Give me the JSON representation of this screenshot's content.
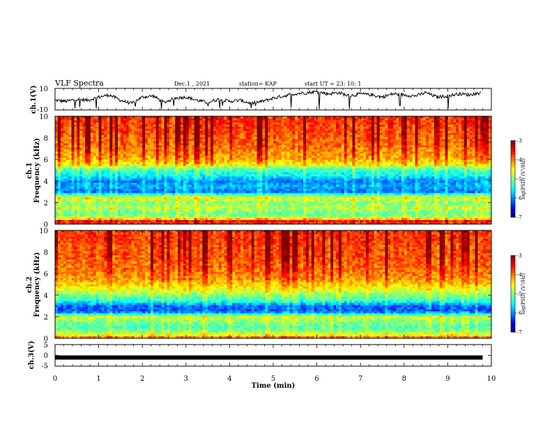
{
  "header": {
    "title": "VLF Spectra",
    "date": "Dec.1  , 2021",
    "station": "station= KAP",
    "start": "start  UT  =   23: 10: 1"
  },
  "chart_data": [
    {
      "type": "line",
      "panel": "ch1-waveform",
      "ylabel": "ch.1(V)",
      "ylim": [
        -10,
        10
      ],
      "yticks": [
        "10",
        "-10"
      ],
      "xlim": [
        0,
        10
      ],
      "series": [
        {
          "x": [
            0,
            0.25,
            0.5,
            0.75,
            1,
            1.25,
            1.5,
            1.75,
            2,
            2.25,
            2.5,
            2.75,
            3,
            3.25,
            3.5,
            3.75,
            4,
            4.25,
            4.5,
            4.75,
            5,
            5.25,
            5.5,
            5.75,
            6,
            6.25,
            6.5,
            6.75,
            7,
            7.25,
            7.5,
            7.75,
            8,
            8.25,
            8.5,
            8.75,
            9,
            9.25,
            9.5,
            9.75
          ],
          "y": [
            -1,
            -2,
            0,
            -1,
            2,
            4,
            -1,
            -4,
            2,
            3,
            -3,
            1,
            2,
            -1,
            -3,
            0,
            -2,
            -1,
            -4,
            -2,
            1,
            3,
            5,
            6,
            7,
            5,
            6,
            3,
            5,
            4,
            2,
            5,
            4,
            3,
            6,
            2,
            3,
            5,
            4,
            6
          ]
        }
      ]
    },
    {
      "type": "heatmap",
      "panel": "ch1-spectrogram",
      "ylabel_line1": "ch.1",
      "ylabel_line2": "Frequency  (kHz)",
      "ylim": [
        0,
        10
      ],
      "yticks": [
        "0",
        "2",
        "4",
        "6",
        "8",
        "10"
      ],
      "xlim": [
        0,
        10
      ],
      "colorbar": {
        "label": "log(PSD) (V²/Hz)",
        "range": [
          -7,
          -3
        ],
        "ticks": [
          "-3",
          "-4",
          "-5",
          "-6",
          "-7"
        ]
      },
      "log_psd_profile": {
        "freq_khz": [
          0,
          0.3,
          0.6,
          1,
          1.5,
          2,
          2.5,
          3,
          3.5,
          4,
          4.5,
          5,
          5.5,
          6,
          6.5,
          7,
          7.5,
          8,
          8.5,
          9,
          9.5,
          10
        ],
        "log_psd": [
          -3.8,
          -3.6,
          -4.9,
          -5.1,
          -4.8,
          -5.0,
          -4.6,
          -6.1,
          -5.8,
          -6.0,
          -5.5,
          -5.3,
          -4.5,
          -4.2,
          -4.1,
          -4.0,
          -3.9,
          -3.9,
          -3.8,
          -3.8,
          -3.7,
          -3.7
        ]
      }
    },
    {
      "type": "heatmap",
      "panel": "ch2-spectrogram",
      "ylabel_line1": "ch.2",
      "ylabel_line2": "Frequency  (kHz)",
      "ylim": [
        0,
        10
      ],
      "yticks": [
        "0",
        "2",
        "4",
        "6",
        "8",
        "10"
      ],
      "xlim": [
        0,
        10
      ],
      "colorbar": {
        "label": "log(PSD) (V²/Hz)",
        "range": [
          -7,
          -3
        ],
        "ticks": [
          "-3",
          "-4",
          "-5",
          "-6",
          "-7"
        ]
      },
      "log_psd_profile": {
        "freq_khz": [
          0,
          0.3,
          0.6,
          1,
          1.5,
          2,
          2.5,
          3,
          3.5,
          4,
          4.5,
          5,
          5.5,
          6,
          6.5,
          7,
          7.5,
          8,
          8.5,
          9,
          9.5,
          10
        ],
        "log_psd": [
          -3.8,
          -4.6,
          -5.0,
          -5.2,
          -5.0,
          -4.7,
          -6.2,
          -6.1,
          -5.3,
          -5.0,
          -4.6,
          -4.3,
          -4.1,
          -4.0,
          -3.9,
          -3.9,
          -3.8,
          -3.8,
          -3.8,
          -3.7,
          -3.7,
          -3.7
        ]
      }
    },
    {
      "type": "line",
      "panel": "ch3-waveform",
      "ylabel": "ch.3(V)",
      "ylim": [
        -5,
        5
      ],
      "yticks": [
        "5",
        "0",
        "-5"
      ],
      "xlim": [
        0,
        9.8
      ],
      "xlabel": "Time  (min)",
      "xticks": [
        "0",
        "1",
        "2",
        "3",
        "4",
        "5",
        "6",
        "7",
        "8",
        "9",
        "10"
      ],
      "series": [
        {
          "x": [
            0,
            9.8
          ],
          "y": [
            -1,
            -1
          ]
        }
      ]
    }
  ]
}
